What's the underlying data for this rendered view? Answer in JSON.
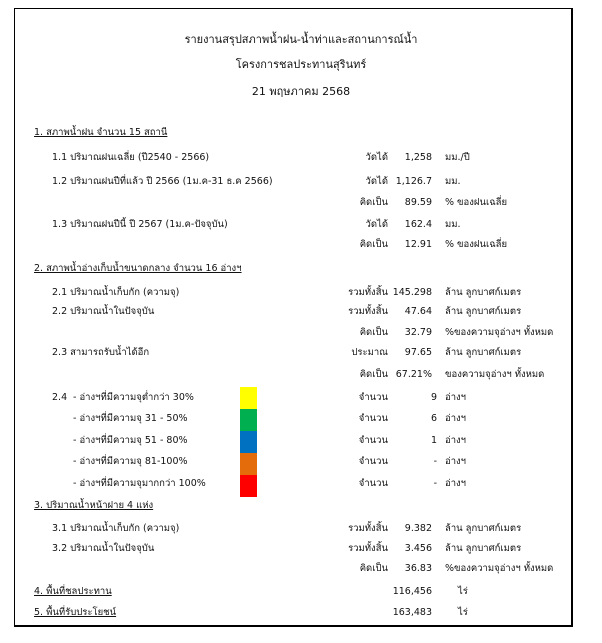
{
  "header": {
    "title": "รายงานสรุปสภาพน้ำฝน-น้ำท่าและสถานการณ์น้ำ",
    "project": "โครงการชลประทานสุรินทร์",
    "date": "21 พฤษภาคม 2568"
  },
  "s1": {
    "heading": "1. สภาพน้ำฝน จำนวน 15 สถานี",
    "r1": {
      "label": "1.1 ปริมาณฝนเฉลี่ย (ปี2540 - 2566)",
      "key": "วัดได้",
      "value": "1,258",
      "unit": "มม./ปี"
    },
    "r2": {
      "label": "1.2 ปริมาณฝนปีที่แล้ว ปี 2566 (1ม.ค-31 ธ.ค 2566)",
      "key": "วัดได้",
      "value": "1,126.7",
      "unit": "มม."
    },
    "r2b": {
      "key": "คิดเป็น",
      "value": "89.59",
      "unit": "% ของฝนเฉลี่ย"
    },
    "r3": {
      "label": "1.3 ปริมาณฝนปีนี้ ปี 2567 (1ม.ค-ปัจจุบัน)",
      "key": "วัดได้",
      "value": "162.4",
      "unit": "มม."
    },
    "r3b": {
      "key": "คิดเป็น",
      "value": "12.91",
      "unit": "% ของฝนเฉลี่ย"
    }
  },
  "s2": {
    "heading": "2. สภาพน้ำอ่างเก็บน้ำขนาดกลาง จำนวน 16 อ่างฯ",
    "r1": {
      "label": "2.1 ปริมาณน้ำเก็บกัก (ความจุ)",
      "key": "รวมทั้งสิ้น",
      "value": "145.298",
      "unit": "ล้าน ลูกบาศก์เมตร"
    },
    "r2": {
      "label": "2.2 ปริมาณน้ำในปัจจุบัน",
      "key": "รวมทั้งสิ้น",
      "value": "47.64",
      "unit": "ล้าน ลูกบาศก์เมตร"
    },
    "r2b": {
      "key": "คิดเป็น",
      "value": "32.79",
      "unit": "%ของความจุอ่างฯ ทั้งหมด"
    },
    "r3": {
      "label": "2.3 สามารถรับน้ำได้อีก",
      "key": "ประมาณ",
      "value": "97.65",
      "unit": "ล้าน ลูกบาศก์เมตร"
    },
    "r3b": {
      "key": "คิดเป็น",
      "value": "67.21%",
      "unit": "ของความจุอ่างฯ ทั้งหมด"
    },
    "r4_num": "2.4",
    "levels": [
      {
        "label": "- อ่างฯที่มีความจุต่ำกว่า 30%",
        "color": "#FFFF00",
        "key": "จำนวน",
        "value": "9",
        "unit": "อ่างฯ"
      },
      {
        "label": "- อ่างฯที่มีความจุ  31 - 50%",
        "color": "#00B050",
        "key": "จำนวน",
        "value": "6",
        "unit": "อ่างฯ"
      },
      {
        "label": "- อ่างฯที่มีความจุ 51 - 80%",
        "color": "#0070C0",
        "key": "จำนวน",
        "value": "1",
        "unit": "อ่างฯ"
      },
      {
        "label": "- อ่างฯที่มีความจุ 81-100%",
        "color": "#E46C0A",
        "key": "จำนวน",
        "value": "-",
        "unit": "อ่างฯ"
      },
      {
        "label": "- อ่างฯที่มีความจุมากกว่า 100%",
        "color": "#FF0000",
        "key": "จำนวน",
        "value": "-",
        "unit": "อ่างฯ"
      }
    ]
  },
  "s3": {
    "heading": "3. ปริมาณน้ำหน้าฝาย 4 แห่ง",
    "r1": {
      "label": "3.1 ปริมาณน้ำเก็บกัก (ความจุ)",
      "key": "รวมทั้งสิ้น",
      "value": "9.382",
      "unit": "ล้าน ลูกบาศก์เมตร"
    },
    "r2": {
      "label": "3.2 ปริมาณน้ำในปัจจุบัน",
      "key": "รวมทั้งสิ้น",
      "value": "3.456",
      "unit": "ล้าน ลูกบาศก์เมตร"
    },
    "r2b": {
      "key": "คิดเป็น",
      "value": "36.83",
      "unit": "%ของความจุอ่างฯ ทั้งหมด"
    }
  },
  "s4": {
    "heading": "4. พื้นที่ชลประทาน",
    "value": "116,456",
    "unit": "ไร่"
  },
  "s5": {
    "heading": "5. พื้นที่รับประโยชน์",
    "value": "163,483",
    "unit": "ไร่"
  }
}
